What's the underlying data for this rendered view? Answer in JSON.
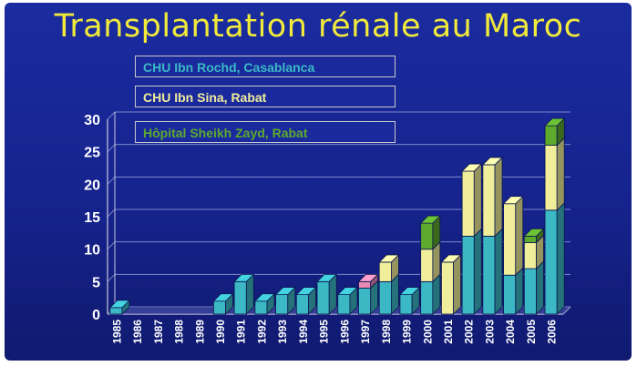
{
  "chart_data": {
    "type": "bar",
    "stacked": true,
    "title": "Transplantation rénale au Maroc",
    "categories": [
      "1985",
      "1986",
      "1987",
      "1988",
      "1989",
      "1990",
      "1991",
      "1992",
      "1993",
      "1994",
      "1995",
      "1996",
      "1997",
      "1998",
      "1999",
      "2000",
      "2001",
      "2002",
      "2003",
      "2004",
      "2005",
      "2006"
    ],
    "series": [
      {
        "name": "CHU Ibn Rochd, Casablanca",
        "color": "#3bb8c4",
        "values": [
          1,
          0,
          0,
          0,
          0,
          2,
          5,
          2,
          3,
          3,
          5,
          3,
          4,
          5,
          3,
          5,
          0,
          12,
          12,
          6,
          7,
          16
        ]
      },
      {
        "name": "CHU Ibn Sina, Rabat",
        "color": "#f0ee9a",
        "values": [
          0,
          0,
          0,
          0,
          0,
          0,
          0,
          0,
          0,
          0,
          0,
          0,
          0,
          3,
          0,
          5,
          8,
          10,
          11,
          11,
          4,
          10
        ]
      },
      {
        "name": "Hôpital Sheikh Zayd, Rabat",
        "color": "#5eaa2e",
        "values": [
          0,
          0,
          0,
          0,
          0,
          0,
          0,
          0,
          0,
          0,
          0,
          0,
          0,
          0,
          0,
          4,
          0,
          0,
          0,
          0,
          1,
          3
        ]
      },
      {
        "name": "",
        "color": "#e88bb4",
        "values": [
          0,
          0,
          0,
          0,
          0,
          0,
          0,
          0,
          0,
          0,
          0,
          0,
          1,
          0,
          0,
          0,
          0,
          0,
          0,
          0,
          0,
          0
        ]
      }
    ],
    "yticks": [
      0,
      5,
      10,
      15,
      20,
      25,
      30
    ],
    "ylim": [
      0,
      30
    ],
    "xlabel": "",
    "ylabel": "",
    "grid": true,
    "legend": "top-left"
  },
  "colors": {
    "title": "#f2ea3a",
    "axis_text": "#ffffff"
  }
}
